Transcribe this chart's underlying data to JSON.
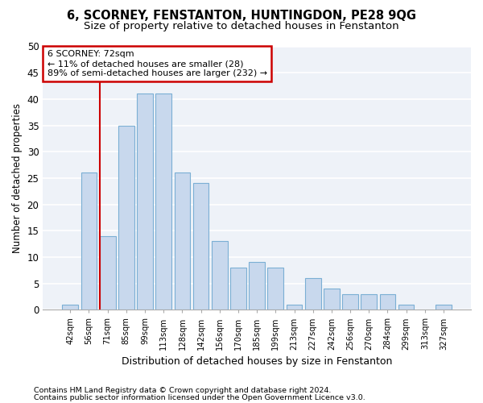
{
  "title1": "6, SCORNEY, FENSTANTON, HUNTINGDON, PE28 9QG",
  "title2": "Size of property relative to detached houses in Fenstanton",
  "xlabel": "Distribution of detached houses by size in Fenstanton",
  "ylabel": "Number of detached properties",
  "bar_labels": [
    "42sqm",
    "56sqm",
    "71sqm",
    "85sqm",
    "99sqm",
    "113sqm",
    "128sqm",
    "142sqm",
    "156sqm",
    "170sqm",
    "185sqm",
    "199sqm",
    "213sqm",
    "227sqm",
    "242sqm",
    "256sqm",
    "270sqm",
    "284sqm",
    "299sqm",
    "313sqm",
    "327sqm"
  ],
  "bar_values": [
    1,
    26,
    14,
    35,
    41,
    41,
    26,
    24,
    13,
    8,
    9,
    8,
    1,
    6,
    4,
    3,
    3,
    3,
    1,
    0,
    1
  ],
  "bar_color": "#c8d8ed",
  "bar_edge_color": "#7bafd4",
  "property_line_index": 2,
  "annotation_title": "6 SCORNEY: 72sqm",
  "annotation_line1": "← 11% of detached houses are smaller (28)",
  "annotation_line2": "89% of semi-detached houses are larger (232) →",
  "annotation_box_color": "#ffffff",
  "annotation_box_edge_color": "#cc0000",
  "line_color": "#cc0000",
  "footer1": "Contains HM Land Registry data © Crown copyright and database right 2024.",
  "footer2": "Contains public sector information licensed under the Open Government Licence v3.0.",
  "ylim": [
    0,
    50
  ],
  "yticks": [
    0,
    5,
    10,
    15,
    20,
    25,
    30,
    35,
    40,
    45,
    50
  ],
  "bg_color": "#eef2f8",
  "grid_color": "#ffffff",
  "title1_fontsize": 10.5,
  "title2_fontsize": 9.5,
  "bar_width": 0.85
}
